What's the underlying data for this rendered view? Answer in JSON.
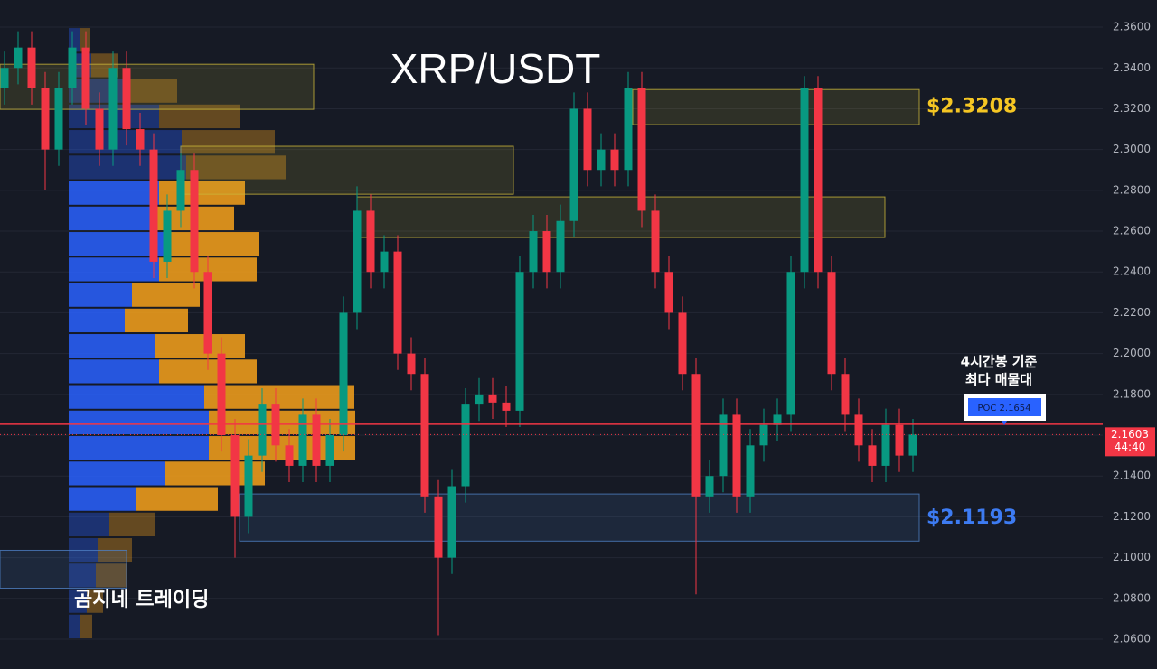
{
  "chart_data": {
    "type": "candlestick",
    "title": "XRP/USDT",
    "ylim": [
      2.0454,
      2.3733
    ],
    "yticks": [
      {
        "value": 2.36,
        "label": "2.3600"
      },
      {
        "value": 2.34,
        "label": "2.3400"
      },
      {
        "value": 2.32,
        "label": "2.3200"
      },
      {
        "value": 2.3,
        "label": "2.3000"
      },
      {
        "value": 2.28,
        "label": "2.2800"
      },
      {
        "value": 2.26,
        "label": "2.2600"
      },
      {
        "value": 2.24,
        "label": "2.2400"
      },
      {
        "value": 2.22,
        "label": "2.2200"
      },
      {
        "value": 2.2,
        "label": "2.2000"
      },
      {
        "value": 2.18,
        "label": "2.1800"
      },
      {
        "value": 2.16,
        "label": "2.1600"
      },
      {
        "value": 2.14,
        "label": "2.1400"
      },
      {
        "value": 2.12,
        "label": "2.1200"
      },
      {
        "value": 2.1,
        "label": "2.1000"
      },
      {
        "value": 2.08,
        "label": "2.0800"
      },
      {
        "value": 2.06,
        "label": "2.0600"
      }
    ],
    "grid": true,
    "up_color": "#089981",
    "down_color": "#f23645",
    "open": [
      2.33,
      2.34,
      2.35,
      2.33,
      2.3,
      2.33,
      2.35,
      2.32,
      2.3,
      2.34,
      2.31,
      2.3,
      2.245,
      2.27,
      2.29,
      2.24,
      2.2,
      2.16,
      2.12,
      2.15,
      2.175,
      2.155,
      2.145,
      2.17,
      2.145,
      2.16,
      2.22,
      2.27,
      2.24,
      2.25,
      2.2,
      2.19,
      2.13,
      2.1,
      2.135,
      2.175,
      2.18,
      2.176,
      2.172,
      2.24,
      2.26,
      2.24,
      2.265,
      2.32,
      2.29,
      2.3,
      2.29,
      2.33,
      2.27,
      2.24,
      2.22,
      2.19,
      2.13,
      2.14,
      2.17,
      2.13,
      2.155,
      2.165,
      2.17,
      2.24,
      2.33,
      2.24,
      2.19,
      2.17,
      2.155,
      2.145,
      2.165,
      2.15
    ],
    "high": [
      2.348,
      2.358,
      2.358,
      2.338,
      2.338,
      2.358,
      2.358,
      2.328,
      2.348,
      2.348,
      2.318,
      2.308,
      2.278,
      2.298,
      2.298,
      2.248,
      2.208,
      2.168,
      2.158,
      2.183,
      2.183,
      2.163,
      2.178,
      2.178,
      2.168,
      2.228,
      2.282,
      2.278,
      2.258,
      2.258,
      2.208,
      2.198,
      2.138,
      2.143,
      2.183,
      2.188,
      2.188,
      2.184,
      2.248,
      2.268,
      2.268,
      2.273,
      2.328,
      2.328,
      2.308,
      2.308,
      2.338,
      2.338,
      2.278,
      2.248,
      2.228,
      2.198,
      2.148,
      2.178,
      2.178,
      2.163,
      2.173,
      2.178,
      2.248,
      2.336,
      2.336,
      2.248,
      2.198,
      2.178,
      2.163,
      2.173,
      2.173,
      2.168
    ],
    "low": [
      2.322,
      2.332,
      2.322,
      2.28,
      2.292,
      2.322,
      2.312,
      2.292,
      2.292,
      2.302,
      2.292,
      2.237,
      2.237,
      2.262,
      2.232,
      2.192,
      2.152,
      2.1,
      2.112,
      2.142,
      2.147,
      2.137,
      2.137,
      2.137,
      2.137,
      2.152,
      2.212,
      2.232,
      2.232,
      2.192,
      2.182,
      2.122,
      2.062,
      2.092,
      2.127,
      2.167,
      2.168,
      2.164,
      2.164,
      2.232,
      2.232,
      2.232,
      2.257,
      2.282,
      2.282,
      2.282,
      2.282,
      2.262,
      2.232,
      2.212,
      2.182,
      2.082,
      2.122,
      2.132,
      2.122,
      2.122,
      2.147,
      2.157,
      2.162,
      2.232,
      2.232,
      2.182,
      2.162,
      2.147,
      2.137,
      2.137,
      2.142,
      2.142
    ],
    "close": [
      2.34,
      2.35,
      2.33,
      2.3,
      2.33,
      2.35,
      2.32,
      2.3,
      2.34,
      2.31,
      2.3,
      2.245,
      2.27,
      2.29,
      2.24,
      2.2,
      2.16,
      2.12,
      2.15,
      2.175,
      2.155,
      2.145,
      2.17,
      2.145,
      2.16,
      2.22,
      2.27,
      2.24,
      2.25,
      2.2,
      2.19,
      2.13,
      2.1,
      2.135,
      2.175,
      2.18,
      2.176,
      2.172,
      2.24,
      2.26,
      2.24,
      2.265,
      2.32,
      2.29,
      2.3,
      2.29,
      2.33,
      2.27,
      2.24,
      2.22,
      2.19,
      2.13,
      2.14,
      2.17,
      2.13,
      2.155,
      2.165,
      2.17,
      2.24,
      2.33,
      2.24,
      2.19,
      2.17,
      2.155,
      2.145,
      2.165,
      2.15,
      2.1603
    ],
    "volume_profile": {
      "levels": [
        2.35375,
        2.34125,
        2.32875,
        2.31625,
        2.30375,
        2.29125,
        2.27875,
        2.26625,
        2.25375,
        2.24125,
        2.22875,
        2.21625,
        2.20375,
        2.19125,
        2.17875,
        2.16625,
        2.15375,
        2.14125,
        2.12875,
        2.11625,
        2.10375,
        2.09125,
        2.07875,
        2.06625
      ],
      "buy": [
        12,
        25,
        65,
        100,
        125,
        130,
        100,
        95,
        105,
        100,
        70,
        62,
        95,
        100,
        150,
        155,
        155,
        107,
        75,
        45,
        32,
        30,
        20,
        12
      ],
      "sell": [
        12,
        30,
        55,
        90,
        103,
        110,
        95,
        88,
        105,
        108,
        75,
        70,
        100,
        108,
        166,
        162,
        162,
        110,
        90,
        50,
        38,
        34,
        18,
        14
      ],
      "buy_color": "#2962ff",
      "sell_color": "#f7a21b",
      "value_area": [
        2.125,
        2.2875
      ]
    },
    "zones": [
      {
        "high": 2.3418,
        "low": 2.3197,
        "color": "#c9b53a"
      },
      {
        "high": 2.3016,
        "low": 2.2781,
        "color": "#c9b53a"
      },
      {
        "high": 2.2768,
        "low": 2.2569,
        "color": "#c9b53a"
      },
      {
        "high": 2.3294,
        "low": 2.3122,
        "color": "#c9b53a",
        "level": 2.3208,
        "label": "$2.3208",
        "label_color": "#f5c623"
      },
      {
        "high": 2.1312,
        "low": 2.1081,
        "color": "#4f7fc4",
        "level": 2.1193,
        "label": "$2.1193",
        "label_color": "#3d7bf2"
      },
      {
        "high": 2.1036,
        "low": 2.085,
        "color": "#4f7fc4"
      }
    ],
    "poc": {
      "value": 2.1654,
      "label": "POC 2.1654",
      "color": "#f23645",
      "note": [
        "4시간봉 기준",
        "최다 매물대"
      ]
    },
    "last_price": {
      "value": 2.1603,
      "countdown": "44:40",
      "color": "#f23645"
    },
    "watermark": "곰지네 트레이딩"
  }
}
